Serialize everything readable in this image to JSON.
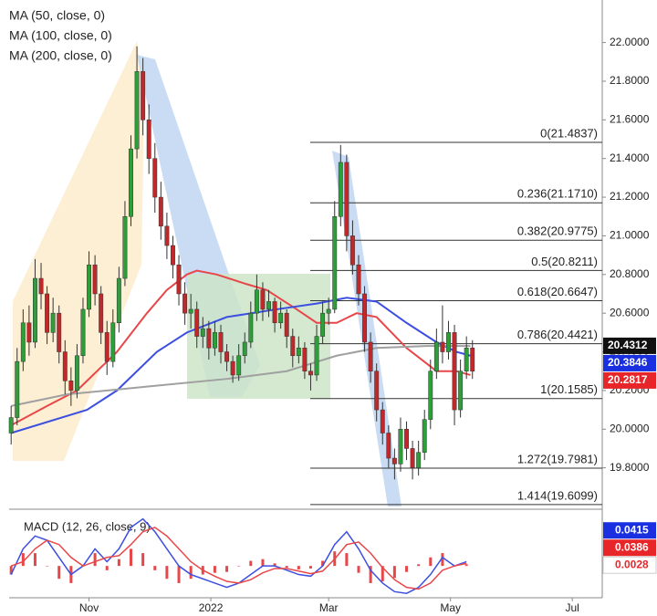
{
  "chart_data": [
    {
      "type": "candlestick",
      "xlim": [
        -9,
        288
      ],
      "ylim": [
        19.6,
        22.22
      ],
      "xticks": [
        {
          "value": 31,
          "label": "Nov"
        },
        {
          "value": 92,
          "label": "2022"
        },
        {
          "value": 151,
          "label": "Mar"
        },
        {
          "value": 212,
          "label": "May"
        },
        {
          "value": 273,
          "label": "Jul"
        }
      ],
      "yticks": [
        {
          "value": 19.8,
          "label": "19.8000"
        },
        {
          "value": 20.0,
          "label": "20.0000"
        },
        {
          "value": 20.2,
          "label": "20.2000"
        },
        {
          "value": 20.4,
          "label": "20.4000"
        },
        {
          "value": 20.6,
          "label": "20.6000"
        },
        {
          "value": 20.8,
          "label": "20.8000"
        },
        {
          "value": 21.0,
          "label": "21.0000"
        },
        {
          "value": 21.2,
          "label": "21.2000"
        },
        {
          "value": 21.4,
          "label": "21.4000"
        },
        {
          "value": 21.6,
          "label": "21.6000"
        },
        {
          "value": 21.8,
          "label": "21.8000"
        },
        {
          "value": 22.0,
          "label": "22.0000"
        }
      ],
      "up_color": "#2e9e3a",
      "down_color": "#c0292b",
      "candles": [
        [
          -8,
          19.98,
          20.12,
          19.92,
          20.06
        ],
        [
          -5,
          20.06,
          20.42,
          20.02,
          20.35
        ],
        [
          -2,
          20.35,
          20.62,
          20.3,
          20.55
        ],
        [
          1,
          20.55,
          20.64,
          20.38,
          20.45
        ],
        [
          4,
          20.45,
          20.88,
          20.42,
          20.78
        ],
        [
          7,
          20.78,
          20.86,
          20.62,
          20.7
        ],
        [
          10,
          20.7,
          20.74,
          20.44,
          20.5
        ],
        [
          13,
          20.5,
          20.68,
          20.45,
          20.6
        ],
        [
          16,
          20.6,
          20.64,
          20.34,
          20.4
        ],
        [
          19,
          20.4,
          20.46,
          20.18,
          20.25
        ],
        [
          22,
          20.25,
          20.32,
          20.12,
          20.2
        ],
        [
          25,
          20.2,
          20.44,
          20.16,
          20.38
        ],
        [
          28,
          20.38,
          20.68,
          20.34,
          20.62
        ],
        [
          31,
          20.62,
          20.92,
          20.58,
          20.85
        ],
        [
          34,
          20.85,
          20.9,
          20.64,
          20.7
        ],
        [
          37,
          20.7,
          20.74,
          20.44,
          20.5
        ],
        [
          40,
          20.5,
          20.56,
          20.28,
          20.35
        ],
        [
          43,
          20.35,
          20.62,
          20.32,
          20.55
        ],
        [
          46,
          20.55,
          20.84,
          20.5,
          20.78
        ],
        [
          49,
          20.78,
          21.18,
          20.74,
          21.1
        ],
        [
          52,
          21.1,
          21.52,
          21.05,
          21.45
        ],
        [
          55,
          21.45,
          21.98,
          21.4,
          21.85
        ],
        [
          58,
          21.85,
          21.92,
          21.52,
          21.6
        ],
        [
          61,
          21.6,
          21.68,
          21.32,
          21.4
        ],
        [
          64,
          21.4,
          21.48,
          21.12,
          21.2
        ],
        [
          67,
          21.2,
          21.28,
          20.98,
          21.05
        ],
        [
          70,
          21.05,
          21.12,
          20.88,
          20.95
        ],
        [
          73,
          20.95,
          21.0,
          20.78,
          20.85
        ],
        [
          76,
          20.85,
          20.9,
          20.64,
          20.7
        ],
        [
          79,
          20.7,
          20.76,
          20.54,
          20.6
        ],
        [
          82,
          20.6,
          20.7,
          20.52,
          20.62
        ],
        [
          85,
          20.62,
          20.66,
          20.42,
          20.48
        ],
        [
          88,
          20.48,
          20.58,
          20.42,
          20.52
        ],
        [
          91,
          20.52,
          20.56,
          20.36,
          20.42
        ],
        [
          94,
          20.42,
          20.56,
          20.38,
          20.5
        ],
        [
          97,
          20.5,
          20.54,
          20.34,
          20.4
        ],
        [
          100,
          20.4,
          20.44,
          20.3,
          20.35
        ],
        [
          103,
          20.35,
          20.38,
          20.24,
          20.28
        ],
        [
          106,
          20.28,
          20.44,
          20.25,
          20.38
        ],
        [
          109,
          20.38,
          20.5,
          20.34,
          20.45
        ],
        [
          112,
          20.45,
          20.66,
          20.42,
          20.6
        ],
        [
          115,
          20.6,
          20.8,
          20.56,
          20.72
        ],
        [
          118,
          20.72,
          20.76,
          20.56,
          20.62
        ],
        [
          121,
          20.62,
          20.72,
          20.58,
          20.66
        ],
        [
          124,
          20.66,
          20.68,
          20.5,
          20.55
        ],
        [
          127,
          20.55,
          20.66,
          20.52,
          20.6
        ],
        [
          130,
          20.6,
          20.62,
          20.42,
          20.48
        ],
        [
          133,
          20.48,
          20.52,
          20.32,
          20.38
        ],
        [
          136,
          20.38,
          20.48,
          20.34,
          20.42
        ],
        [
          139,
          20.42,
          20.45,
          20.26,
          20.3
        ],
        [
          142,
          20.3,
          20.34,
          20.2,
          20.28
        ],
        [
          145,
          20.28,
          20.54,
          20.25,
          20.48
        ],
        [
          148,
          20.48,
          20.66,
          20.44,
          20.6
        ],
        [
          151,
          20.6,
          20.68,
          20.54,
          20.62
        ],
        [
          154,
          20.62,
          21.18,
          20.6,
          21.1
        ],
        [
          157,
          21.1,
          21.47,
          21.05,
          21.38
        ],
        [
          160,
          21.38,
          21.42,
          20.92,
          21.0
        ],
        [
          163,
          21.0,
          21.08,
          20.8,
          20.85
        ],
        [
          166,
          20.85,
          20.9,
          20.64,
          20.7
        ],
        [
          169,
          20.7,
          20.74,
          20.4,
          20.45
        ],
        [
          172,
          20.45,
          20.5,
          20.24,
          20.3
        ],
        [
          175,
          20.3,
          20.34,
          20.04,
          20.1
        ],
        [
          178,
          20.1,
          20.14,
          19.92,
          19.98
        ],
        [
          181,
          19.98,
          20.02,
          19.8,
          19.85
        ],
        [
          184,
          19.85,
          19.9,
          19.74,
          19.82
        ],
        [
          187,
          19.82,
          20.06,
          19.78,
          20.0
        ],
        [
          190,
          20.0,
          20.04,
          19.84,
          19.9
        ],
        [
          193,
          19.9,
          19.94,
          19.74,
          19.8
        ],
        [
          196,
          19.8,
          19.94,
          19.76,
          19.88
        ],
        [
          199,
          19.88,
          20.1,
          19.84,
          20.05
        ],
        [
          202,
          20.05,
          20.36,
          20.0,
          20.3
        ],
        [
          205,
          20.3,
          20.52,
          20.26,
          20.45
        ],
        [
          208,
          20.45,
          20.64,
          20.34,
          20.4
        ],
        [
          211,
          20.4,
          20.56,
          20.36,
          20.5
        ],
        [
          214,
          20.5,
          20.54,
          20.02,
          20.1
        ],
        [
          217,
          20.1,
          20.36,
          20.06,
          20.3
        ],
        [
          220,
          20.3,
          20.48,
          20.26,
          20.42
        ],
        [
          223,
          20.42,
          20.46,
          20.26,
          20.3
        ]
      ],
      "series": [
        {
          "name": "MA (50, close, 0)",
          "color": "#e8474a",
          "x": [
            -8,
            10,
            25,
            45,
            60,
            70,
            80,
            85,
            95,
            110,
            120,
            135,
            145,
            155,
            165,
            175,
            190,
            205,
            215,
            222
          ],
          "values": [
            20.02,
            20.12,
            20.2,
            20.4,
            20.6,
            20.72,
            20.8,
            20.82,
            20.8,
            20.75,
            20.72,
            20.62,
            20.55,
            20.55,
            20.6,
            20.58,
            20.42,
            20.3,
            20.3,
            20.28
          ]
        },
        {
          "name": "MA (100, close, 0)",
          "color": "#3d4fe0",
          "x": [
            -8,
            30,
            45,
            65,
            80,
            100,
            125,
            145,
            160,
            175,
            190,
            205,
            215,
            222
          ],
          "values": [
            19.98,
            20.1,
            20.2,
            20.4,
            20.5,
            20.58,
            20.62,
            20.65,
            20.68,
            20.66,
            20.55,
            20.45,
            20.4,
            20.38
          ]
        },
        {
          "name": "MA (200, close, 0)",
          "color": "#a0a0a0",
          "x": [
            -8,
            20,
            60,
            100,
            130,
            155,
            175,
            200,
            222
          ],
          "values": [
            20.12,
            20.18,
            20.22,
            20.26,
            20.3,
            20.38,
            20.42,
            20.43,
            20.43
          ]
        }
      ],
      "price_labels": [
        {
          "value": 20.4312,
          "color": "#111111"
        },
        {
          "value": 20.3846,
          "color": "#1a2fe0"
        },
        {
          "value": 20.2817,
          "color": "#e8262a"
        }
      ],
      "fib_levels": [
        {
          "value": 21.4837,
          "label": "0(21.4837)"
        },
        {
          "value": 21.171,
          "label": "0.236(21.1710)"
        },
        {
          "value": 20.9775,
          "label": "0.382(20.9775)"
        },
        {
          "value": 20.8211,
          "label": "0.5(20.8211)"
        },
        {
          "value": 20.6647,
          "label": "0.618(20.6647)"
        },
        {
          "value": 20.4421,
          "label": "0.786(20.4421)"
        },
        {
          "value": 20.1585,
          "label": "1(20.1585)"
        },
        {
          "value": 19.7981,
          "label": "1.272(19.7981)"
        },
        {
          "value": 19.6099,
          "label": "1.414(19.6099)"
        }
      ]
    },
    {
      "type": "line",
      "title": "MACD (12, 26, close, 9)",
      "ylim": [
        -0.035,
        0.062
      ],
      "x": [
        -8,
        -2,
        4,
        10,
        16,
        22,
        28,
        34,
        40,
        46,
        52,
        58,
        64,
        70,
        76,
        82,
        88,
        94,
        100,
        106,
        112,
        118,
        124,
        130,
        136,
        142,
        148,
        154,
        160,
        166,
        172,
        178,
        184,
        190,
        196,
        202,
        208,
        214,
        220
      ],
      "series": [
        {
          "color": "#3d4fe0",
          "values": [
            -0.01,
            0.02,
            0.035,
            0.03,
            0.01,
            -0.01,
            0.0,
            0.02,
            0.005,
            0.02,
            0.045,
            0.055,
            0.04,
            0.02,
            0.0,
            -0.01,
            -0.015,
            -0.02,
            -0.025,
            -0.02,
            -0.01,
            0.0,
            0.0,
            -0.005,
            -0.01,
            -0.012,
            0.0,
            0.025,
            0.04,
            0.02,
            -0.005,
            -0.02,
            -0.03,
            -0.032,
            -0.025,
            -0.01,
            0.01,
            0.0,
            0.005
          ]
        },
        {
          "color": "#e8474a",
          "values": [
            0.0,
            0.005,
            0.02,
            0.03,
            0.025,
            0.01,
            0.0,
            0.005,
            0.01,
            0.012,
            0.025,
            0.04,
            0.045,
            0.035,
            0.02,
            0.005,
            -0.005,
            -0.012,
            -0.018,
            -0.02,
            -0.016,
            -0.008,
            -0.003,
            -0.003,
            -0.006,
            -0.009,
            -0.006,
            0.008,
            0.025,
            0.028,
            0.015,
            -0.002,
            -0.016,
            -0.025,
            -0.027,
            -0.02,
            -0.005,
            0.0,
            0.003
          ]
        }
      ],
      "histogram": {
        "color": "#e8474a",
        "values": [
          -0.01,
          0.015,
          0.015,
          0,
          -0.015,
          -0.02,
          0,
          0.015,
          -0.005,
          0.008,
          0.02,
          0.015,
          -0.005,
          -0.015,
          -0.02,
          -0.015,
          -0.01,
          -0.008,
          -0.007,
          0,
          0.006,
          0.008,
          0.003,
          -0.002,
          -0.004,
          -0.003,
          0.006,
          0.017,
          0.015,
          -0.008,
          -0.02,
          -0.018,
          -0.014,
          -0.007,
          0.002,
          0.01,
          0.015,
          0,
          0.002
        ]
      },
      "last_values": [
        {
          "value": 0.0415,
          "color": "#1a2fe0"
        },
        {
          "value": 0.0386,
          "color": "#e8262a"
        },
        {
          "value": 0.0028,
          "color": "#ffffff"
        }
      ]
    }
  ]
}
